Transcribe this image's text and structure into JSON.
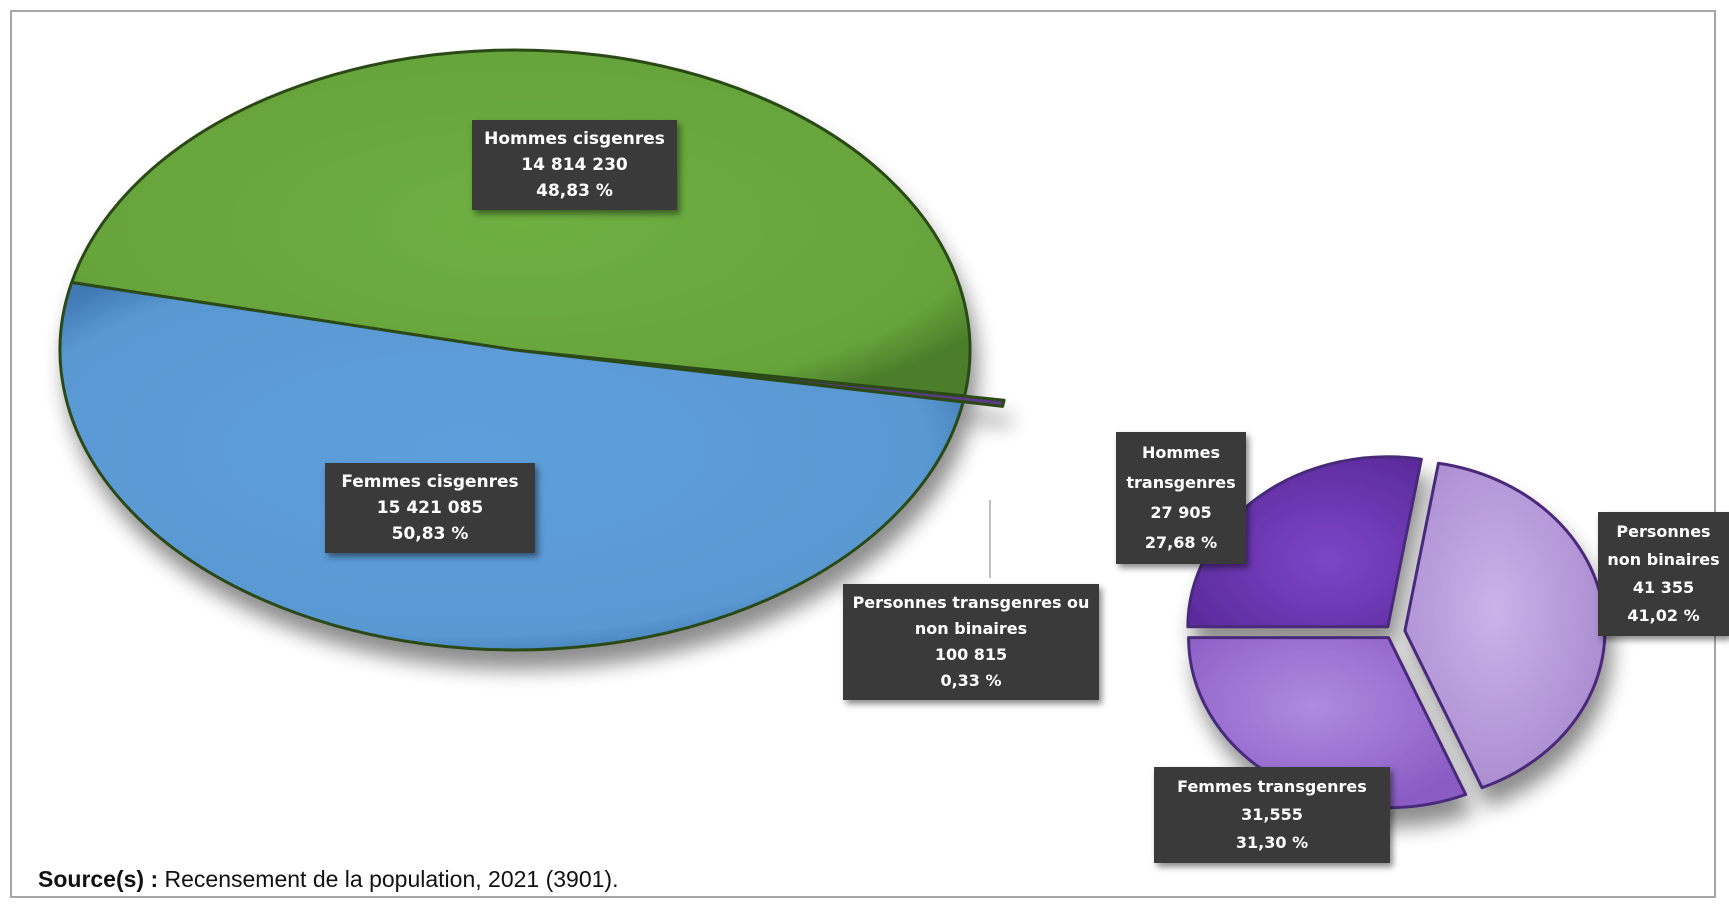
{
  "chart_data": [
    {
      "type": "pie",
      "slices": [
        {
          "name": "Hommes cisgenres",
          "value_label": "14 814 230",
          "value": 14814230,
          "percent_label": "48,83 %",
          "percent": 48.83,
          "color": "#6aa83f"
        },
        {
          "name": "Personnes transgenres ou non binaires",
          "value_label": "100 815",
          "value": 100815,
          "percent_label": "0,33 %",
          "percent": 0.33,
          "color": "#5b3a86"
        },
        {
          "name": "Femmes cisgenres",
          "value_label": "15 421 085",
          "value": 15421085,
          "percent_label": "50,83 %",
          "percent": 50.83,
          "color": "#5b9bd5"
        }
      ]
    },
    {
      "type": "pie",
      "slices": [
        {
          "name": "Hommes transgenres",
          "value_label": "27 905",
          "value": 27905,
          "percent_label": "27,68 %",
          "percent": 27.68,
          "color": "#7b3fc4"
        },
        {
          "name": "Personnes non binaires",
          "value_label": "41 355",
          "value": 41355,
          "percent_label": "41,02 %",
          "percent": 41.02,
          "color": "#c4a8e4"
        },
        {
          "name": "Femmes transgenres",
          "value_label": "31,555",
          "value": 31555,
          "percent_label": "31,30 %",
          "percent": 31.3,
          "color": "#a57ad8"
        }
      ]
    }
  ],
  "labels": {
    "hommes_cis": [
      "Hommes cisgenres",
      "14 814 230",
      "48,83 %"
    ],
    "femmes_cis": [
      "Femmes cisgenres",
      "15 421 085",
      "50,83 %"
    ],
    "trans_nb": [
      "Personnes transgenres ou",
      "non binaires",
      "100 815",
      "0,33 %"
    ],
    "hommes_trans": [
      "Hommes",
      "transgenres",
      "27 905",
      "27,68 %"
    ],
    "nb": [
      "Personnes",
      "non binaires",
      "41 355",
      "41,02 %"
    ],
    "femmes_trans": [
      "Femmes transgenres",
      "31,555",
      "31,30 %"
    ]
  },
  "source": {
    "label": "Source(s) :",
    "text": "Recensement de la population, 2021 (3901)."
  }
}
